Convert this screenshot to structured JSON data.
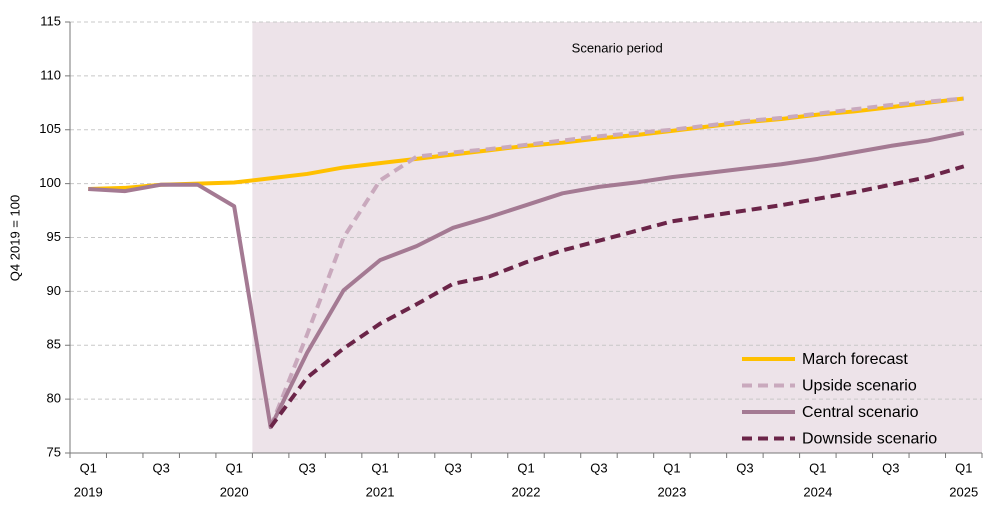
{
  "chart_data": {
    "type": "line",
    "y_label": "Q4 2019 = 100",
    "categories": [
      "Q1",
      null,
      "Q3",
      null,
      "Q1",
      null,
      "Q3",
      null,
      "Q1",
      null,
      "Q3",
      null,
      "Q1",
      null,
      "Q3",
      null,
      "Q1",
      null,
      "Q3",
      null,
      "Q1",
      null,
      "Q3",
      null,
      "Q1"
    ],
    "year_labels": [
      "2019",
      null,
      null,
      null,
      "2020",
      null,
      null,
      null,
      "2021",
      null,
      null,
      null,
      "2022",
      null,
      null,
      null,
      "2023",
      null,
      null,
      null,
      "2024",
      null,
      null,
      null,
      "2025"
    ],
    "shaded_region": {
      "label": "Scenario period",
      "from_index": 4.5
    },
    "ylim": [
      75,
      115
    ],
    "yticks": [
      75,
      80,
      85,
      90,
      95,
      100,
      105,
      110,
      115
    ],
    "grid": true,
    "legend": "lower-right",
    "series": [
      {
        "name": "March forecast",
        "color": "#ffc000",
        "style": "solid",
        "values": [
          99.5,
          99.6,
          99.9,
          100,
          100.1,
          100.5,
          100.9,
          101.5,
          101.9,
          102.3,
          102.7,
          103.1,
          103.5,
          103.8,
          104.2,
          104.5,
          104.9,
          105.3,
          105.7,
          106.0,
          106.4,
          106.7,
          107.1,
          107.5,
          107.9
        ]
      },
      {
        "name": "Upside scenario",
        "color": "#c9a9bd",
        "style": "dashed",
        "values": [
          null,
          null,
          null,
          null,
          null,
          77.4,
          86.0,
          95.0,
          100.3,
          102.5,
          102.9,
          103.2,
          103.6,
          104.0,
          104.4,
          104.7,
          105.0,
          105.4,
          105.8,
          106.1,
          106.5,
          106.9,
          107.3,
          107.6,
          107.9
        ]
      },
      {
        "name": "Central scenario",
        "color": "#a47a93",
        "style": "solid",
        "values": [
          99.5,
          99.3,
          99.9,
          99.9,
          97.9,
          77.4,
          84.3,
          90.1,
          92.9,
          94.2,
          95.9,
          96.9,
          98.0,
          99.1,
          99.7,
          100.1,
          100.6,
          101.0,
          101.4,
          101.8,
          102.3,
          102.9,
          103.5,
          104.0,
          104.7
        ]
      },
      {
        "name": "Downside scenario",
        "color": "#6b2448",
        "style": "dashed",
        "values": [
          null,
          null,
          null,
          null,
          null,
          77.4,
          82.0,
          84.7,
          87.0,
          88.8,
          90.7,
          91.4,
          92.7,
          93.8,
          94.7,
          95.6,
          96.5,
          97.0,
          97.5,
          98.0,
          98.6,
          99.2,
          99.9,
          100.6,
          101.6
        ]
      }
    ]
  }
}
